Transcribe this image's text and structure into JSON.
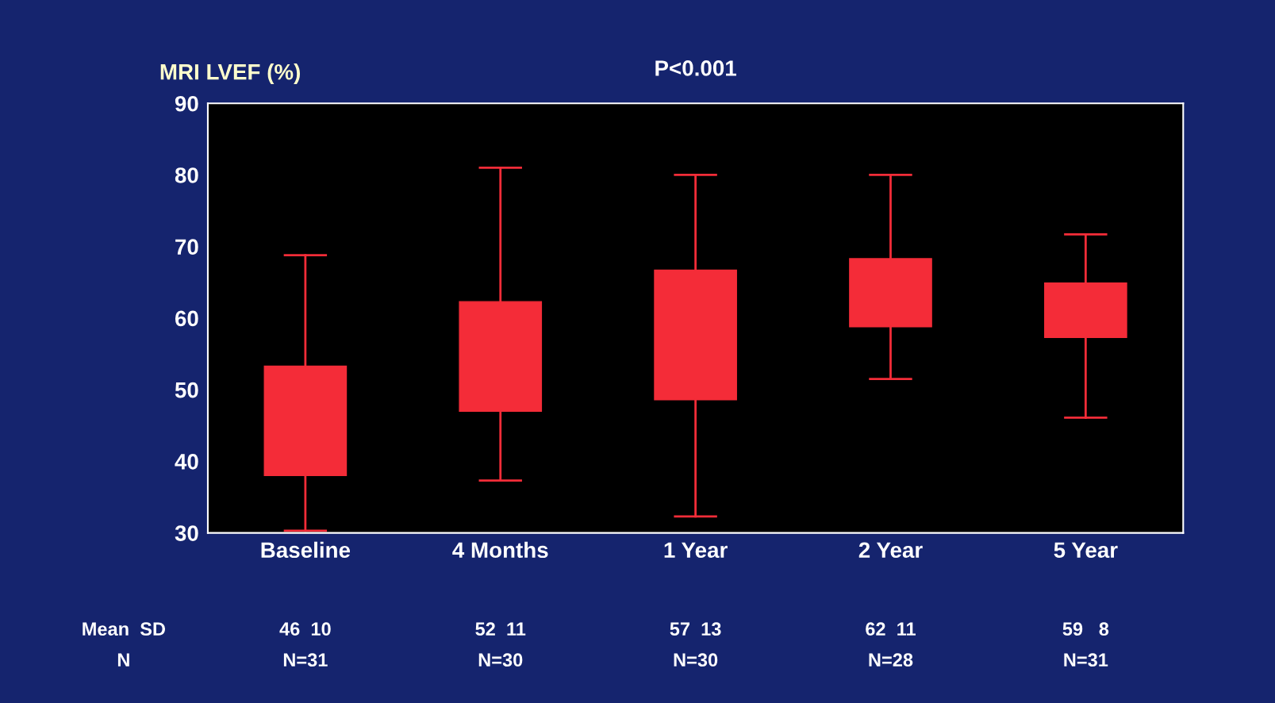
{
  "chart_data": {
    "type": "box",
    "title": "P<0.001",
    "ylabel": "MRI LVEF (%)",
    "categories": [
      "Baseline",
      "4 Months",
      "1 Year",
      "2 Year",
      "5 Year"
    ],
    "boxes": [
      {
        "low": 30.3,
        "q1": 38,
        "q3": 53.3,
        "high": 68.8
      },
      {
        "low": 37.3,
        "q1": 47,
        "q3": 62.3,
        "high": 81
      },
      {
        "low": 32.3,
        "q1": 48.6,
        "q3": 66.7,
        "high": 80
      },
      {
        "low": 51.5,
        "q1": 58.8,
        "q3": 68.3,
        "high": 80
      },
      {
        "low": 46.1,
        "q1": 57.3,
        "q3": 64.9,
        "high": 71.7
      }
    ],
    "color": "#f42c38",
    "ylim": [
      30,
      90
    ],
    "yticks": [
      30,
      40,
      50,
      60,
      70,
      80,
      90
    ],
    "grid": false,
    "annotations": [
      "Mean  SD",
      "N",
      "46  10",
      "N=31",
      "52  11",
      "N=30",
      "57  13",
      "N=30",
      "62  11",
      "N=28",
      "59   8",
      "N=31"
    ]
  }
}
